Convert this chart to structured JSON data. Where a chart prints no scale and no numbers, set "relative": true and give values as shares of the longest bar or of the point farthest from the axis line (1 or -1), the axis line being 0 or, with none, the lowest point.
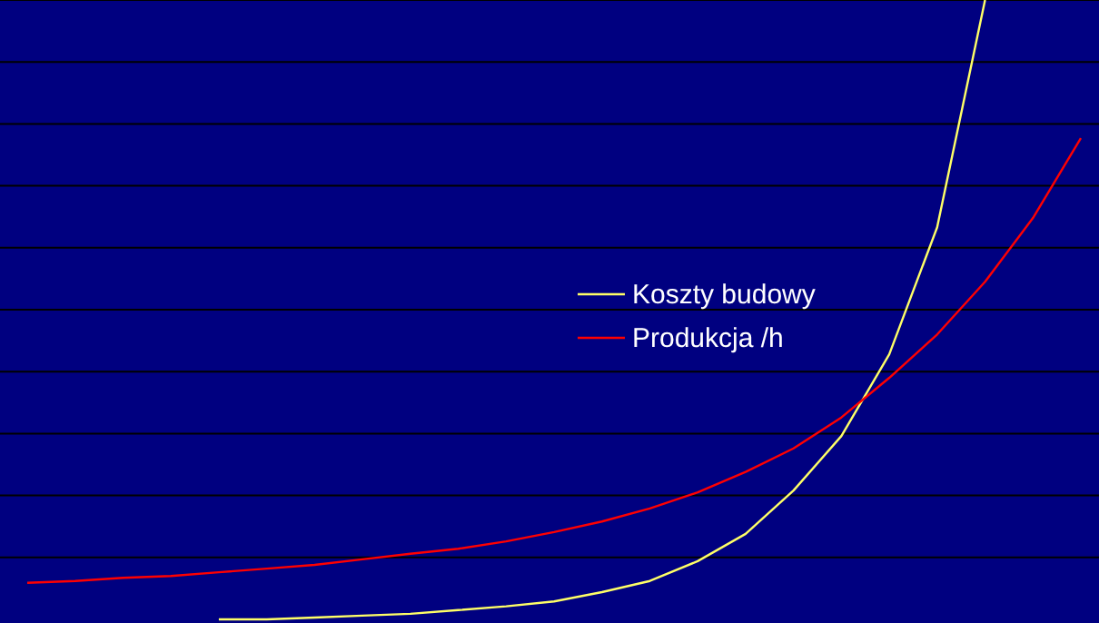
{
  "chart_data": {
    "type": "line",
    "relative": true,
    "grid": "y",
    "legend": "right",
    "marker": "none",
    "line_style": "solid",
    "categories": [
      null,
      null,
      null,
      null,
      null,
      null,
      null,
      null,
      null,
      null,
      null,
      null,
      null,
      null,
      null,
      null,
      null,
      null,
      null,
      null,
      null,
      null,
      null
    ],
    "series": [
      {
        "name": "Koszty budowy",
        "color": "#ffff66",
        "values": [
          null,
          null,
          null,
          null,
          0,
          0,
          0.003,
          0.006,
          0.009,
          0.015,
          0.021,
          0.029,
          0.044,
          0.062,
          0.094,
          0.138,
          0.208,
          0.296,
          0.428,
          0.633,
          1,
          null,
          null
        ]
      },
      {
        "name": "Produkcja /h",
        "color": "#ff0000",
        "values": [
          0.059,
          0.062,
          0.067,
          0.07,
          0.076,
          0.082,
          0.088,
          0.097,
          0.106,
          0.114,
          0.126,
          0.141,
          0.158,
          0.179,
          0.205,
          0.238,
          0.276,
          0.326,
          0.39,
          0.46,
          0.545,
          0.648,
          0.777
        ]
      }
    ]
  }
}
